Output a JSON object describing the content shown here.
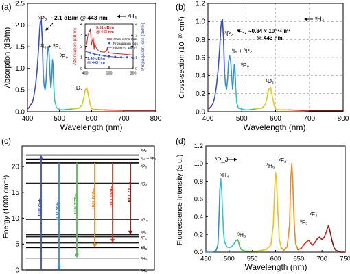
{
  "panels": {
    "a": {
      "label": "(a)"
    },
    "b": {
      "label": "(b)"
    },
    "c": {
      "label": "(c)"
    },
    "d": {
      "label": "(d)"
    }
  },
  "colors": {
    "spectrum": [
      "#6a2ca0",
      "#3a4fc0",
      "#2f8fd8",
      "#2fc6c6",
      "#4cc24c",
      "#c8d21a",
      "#f0c020",
      "#f08a20",
      "#e03020",
      "#c01818",
      "#8a1010"
    ],
    "attenuation": "#e02020",
    "propagation": "#3050c0",
    "fitting": "#3050c0"
  },
  "chart_data": [
    {
      "id": "a",
      "type": "line",
      "xlabel": "Wavelength (nm)",
      "ylabel": "Absorption (dB/m)",
      "xlim": [
        400,
        800
      ],
      "ylim": [
        0,
        2.5
      ],
      "xticks": [
        "400",
        "500",
        "600",
        "700",
        "800"
      ],
      "yticks": [
        "0.0",
        "0.5",
        "1.0",
        "1.5",
        "2.0",
        "2.5"
      ],
      "series": [
        {
          "x": [
            400,
            405,
            410,
            415,
            420,
            425,
            430,
            435,
            438,
            440,
            443,
            446,
            449,
            452,
            455,
            458,
            461,
            464,
            467,
            470,
            473,
            476,
            478,
            480,
            482,
            485,
            490,
            500,
            510,
            520,
            540,
            560,
            570,
            575,
            580,
            585,
            588,
            592,
            596,
            600,
            610,
            640,
            700,
            760,
            800
          ],
          "y": [
            0.06,
            0.1,
            0.16,
            0.2,
            0.36,
            0.6,
            0.95,
            1.5,
            1.9,
            2.07,
            2.1,
            1.7,
            0.9,
            0.6,
            0.5,
            0.7,
            1.2,
            1.5,
            1.4,
            0.9,
            0.55,
            0.8,
            1.2,
            1.06,
            0.6,
            0.25,
            0.1,
            0.05,
            0.04,
            0.05,
            0.06,
            0.08,
            0.15,
            0.3,
            0.5,
            0.55,
            0.45,
            0.3,
            0.15,
            0.07,
            0.05,
            0.04,
            0.03,
            0.03,
            0.03
          ]
        }
      ],
      "annotations": [
        "³P₂",
        "~2.1 dB/m @ 443 nm",
        "³H₄",
        "¹I₆ + ³P₂",
        "³P₀",
        "¹D₂"
      ],
      "inset": {
        "xlim": [
          400,
          800
        ],
        "xticks": [
          "400",
          "600",
          "800"
        ],
        "ylim_left": [
          0,
          4
        ],
        "yticks_left": [
          "0",
          "1",
          "2",
          "3",
          "4"
        ],
        "ylim_right": [
          0,
          4
        ],
        "yticks_right": [
          "0",
          "1",
          "2",
          "3",
          "4"
        ],
        "ylabel_left": "Attenuation (dB/m)",
        "ylabel_right": "Propagation loss (dB/m)",
        "legend": [
          "Attenuation loss",
          "Propagation loss",
          "Fitting (∝ 1/λ⁴)"
        ],
        "annotations": [
          "3.51 dB/m",
          "@ 443 nm",
          "1.40 dB/m",
          "@ 443 nm"
        ],
        "attenuation": {
          "x": [
            400,
            415,
            425,
            435,
            440,
            443,
            447,
            452,
            460,
            468,
            475,
            480,
            490,
            510,
            530,
            560,
            580,
            585,
            590,
            600,
            640,
            700,
            760,
            800
          ],
          "y": [
            1.7,
            2.3,
            3.1,
            3.3,
            3.45,
            3.51,
            3.0,
            2.1,
            2.5,
            2.8,
            1.7,
            2.3,
            1.9,
            1.6,
            1.5,
            1.45,
            1.6,
            1.9,
            1.55,
            1.4,
            1.35,
            1.3,
            1.25,
            1.2
          ]
        },
        "propagation": {
          "x": [
            443,
            480,
            520,
            560,
            600,
            650,
            700,
            750,
            800
          ],
          "y": [
            1.4,
            1.25,
            1.2,
            1.15,
            1.1,
            1.05,
            1.0,
            1.0,
            0.95
          ]
        },
        "fitting": {
          "x": [
            400,
            450,
            500,
            550,
            600,
            650,
            700,
            750,
            800
          ],
          "y": [
            1.55,
            1.38,
            1.25,
            1.15,
            1.08,
            1.03,
            0.99,
            0.96,
            0.94
          ]
        }
      }
    },
    {
      "id": "b",
      "type": "line",
      "xlabel": "Wavelength (nm)",
      "ylabel": "Cross-section (10⁻²⁰ cm²)",
      "xlim": [
        400,
        800
      ],
      "ylim": [
        0,
        1.2
      ],
      "xticks": [
        "400",
        "500",
        "600",
        "700",
        "800"
      ],
      "yticks": [
        "0.0",
        "0.2",
        "0.4",
        "0.6",
        "0.8",
        "1.0",
        "1.2"
      ],
      "grid": true,
      "series": [
        {
          "x": [
            400,
            405,
            410,
            415,
            420,
            425,
            430,
            435,
            438,
            440,
            443,
            446,
            449,
            452,
            455,
            458,
            461,
            464,
            467,
            470,
            473,
            476,
            478,
            480,
            482,
            485,
            490,
            500,
            510,
            520,
            540,
            560,
            570,
            575,
            580,
            585,
            588,
            592,
            596,
            600,
            610,
            640,
            700,
            760,
            800
          ],
          "y": [
            0.03,
            0.04,
            0.06,
            0.09,
            0.16,
            0.28,
            0.46,
            0.72,
            0.92,
            1.0,
            1.02,
            0.82,
            0.44,
            0.3,
            0.25,
            0.35,
            0.55,
            0.62,
            0.57,
            0.4,
            0.25,
            0.4,
            0.52,
            0.47,
            0.28,
            0.1,
            0.04,
            0.03,
            0.02,
            0.02,
            0.03,
            0.04,
            0.08,
            0.16,
            0.25,
            0.27,
            0.22,
            0.14,
            0.07,
            0.03,
            0.02,
            0.02,
            0.01,
            0.01,
            0.01
          ]
        }
      ],
      "annotations": [
        "³P₂",
        "~0.84 × 10⁻²⁴ m²",
        "@ 443 nm",
        "³H₄",
        "¹I₆ + ³P₂",
        "³P₀",
        "¹D₂"
      ]
    },
    {
      "id": "c",
      "type": "other",
      "ylabel": "Energy (1000 cm⁻¹)",
      "ylim": [
        0,
        24
      ],
      "yticks": [
        "0",
        "5",
        "10",
        "15",
        "20"
      ],
      "levels": [
        {
          "label": "³P₂",
          "e": 22.2
        },
        {
          "label": "¹I₆ + ³P₁",
          "e": 21.4
        },
        {
          "label": "³P₀",
          "e": 20.7
        },
        {
          "label": "¹D₂",
          "e": 16.8
        },
        {
          "label": "¹G₄",
          "e": 9.8
        },
        {
          "label": "³F₄",
          "e": 6.8
        },
        {
          "label": "³F₃",
          "e": 6.4
        },
        {
          "label": "³F₂",
          "e": 5.2
        },
        {
          "label": "³H₆",
          "e": 4.3
        },
        {
          "label": "³H₅",
          "e": 2.3
        },
        {
          "label": "³H₄",
          "e": 0
        }
      ],
      "transitions": [
        {
          "label": "~443 nm",
          "from": 0,
          "to": 22.2,
          "direction": "up"
        },
        {
          "label": "~480 nm",
          "from": 20.7,
          "to": 0,
          "direction": "down"
        },
        {
          "label": "~521 nm",
          "from": 20.7,
          "to": 2.3,
          "direction": "down"
        },
        {
          "label": "~603 nm",
          "from": 20.7,
          "to": 4.3,
          "direction": "down"
        },
        {
          "label": "~635 nm",
          "from": 20.7,
          "to": 5.2,
          "direction": "down"
        },
        {
          "label": "~717 nm",
          "from": 20.7,
          "to": 6.8,
          "direction": "down"
        }
      ]
    },
    {
      "id": "d",
      "type": "line",
      "xlabel": "Wavelength (nm)",
      "ylabel": "Fluorescence Intensity (a.u.)",
      "xlim": [
        450,
        750
      ],
      "ylim": [
        0,
        1.2
      ],
      "xticks": [
        "450",
        "500",
        "550",
        "600",
        "650",
        "700",
        "750"
      ],
      "yticks": [
        "0.0",
        "0.2",
        "0.4",
        "0.6",
        "0.8",
        "1.0",
        "1.2"
      ],
      "series": [
        {
          "x": [
            450,
            465,
            472,
            474,
            476,
            478,
            480,
            482,
            484,
            486,
            488,
            490,
            495,
            500,
            505,
            510,
            515,
            518,
            520,
            523,
            526,
            530,
            535,
            540,
            550,
            560,
            570,
            580,
            590,
            595,
            598,
            600,
            602,
            605,
            608,
            612,
            618,
            625,
            630,
            633,
            635,
            637,
            640,
            643,
            648,
            655,
            662,
            668,
            672,
            676,
            680,
            685,
            690,
            695,
            700,
            705,
            710,
            714,
            718,
            722,
            726,
            730,
            735,
            740,
            745,
            750
          ],
          "y": [
            0.0,
            0.0,
            0.02,
            0.05,
            0.09,
            0.35,
            0.7,
            0.83,
            0.7,
            0.45,
            0.22,
            0.12,
            0.06,
            0.05,
            0.06,
            0.09,
            0.13,
            0.14,
            0.12,
            0.06,
            0.03,
            0.02,
            0.01,
            0.01,
            0.01,
            0.01,
            0.02,
            0.03,
            0.08,
            0.3,
            0.7,
            0.9,
            0.82,
            0.45,
            0.15,
            0.05,
            0.02,
            0.06,
            0.3,
            0.85,
            1.0,
            0.8,
            0.35,
            0.1,
            0.03,
            0.04,
            0.09,
            0.12,
            0.13,
            0.1,
            0.08,
            0.11,
            0.15,
            0.17,
            0.14,
            0.17,
            0.24,
            0.3,
            0.22,
            0.12,
            0.05,
            0.02,
            0.01,
            0.0,
            0.0,
            0.0
          ]
        }
      ],
      "annotations": [
        "³P_J",
        "³H₄",
        "³H₅",
        "³H₆",
        "³F₂",
        "³F₃",
        "³F₄"
      ]
    }
  ]
}
